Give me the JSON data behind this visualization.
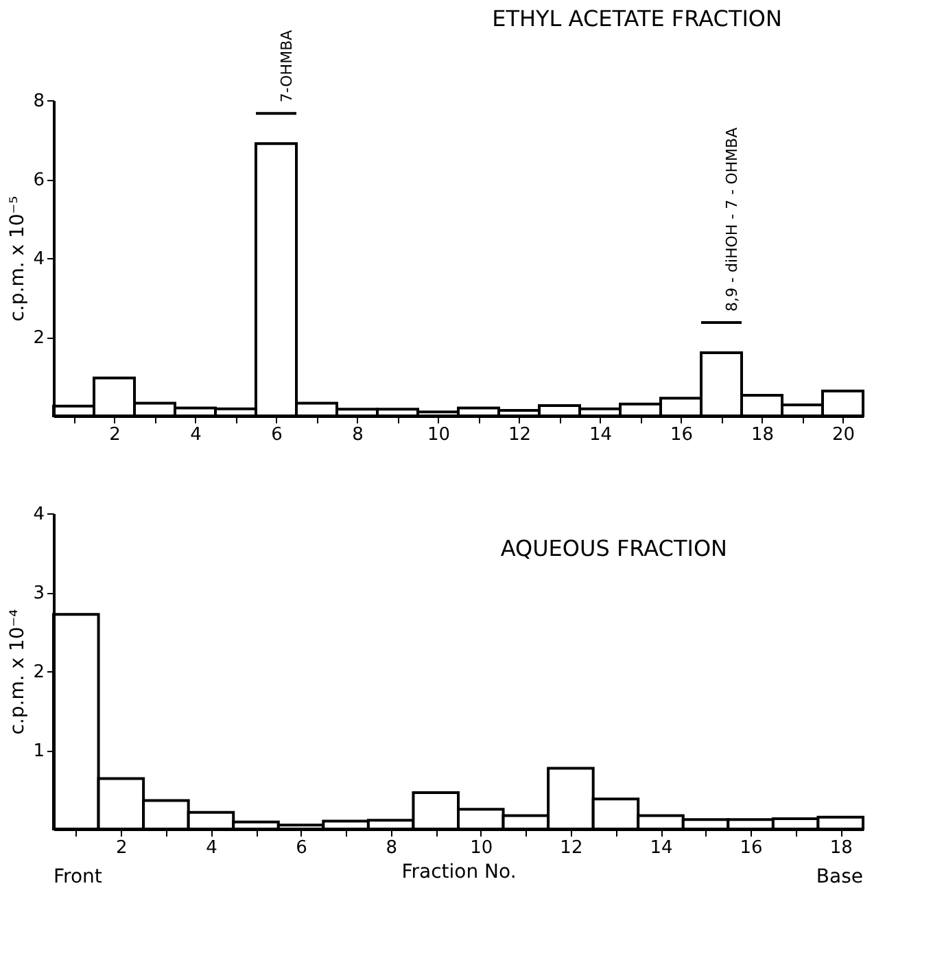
{
  "chart_data": [
    {
      "type": "histogram",
      "title": "ETHYL ACETATE FRACTION",
      "ylabel": "c.p.m. x 10⁻⁵",
      "color": "#000000",
      "bins": [
        0.5,
        1.5,
        2.5,
        3.5,
        4.5,
        5.5,
        6.5,
        7.5,
        8.5,
        9.5,
        10.5,
        11.5,
        12.5,
        13.5,
        14.5,
        15.5,
        16.5,
        17.5,
        18.5,
        19.5,
        20.5
      ],
      "values": [
        0.25,
        0.96,
        0.32,
        0.2,
        0.18,
        6.9,
        0.32,
        0.17,
        0.17,
        0.1,
        0.2,
        0.14,
        0.26,
        0.18,
        0.3,
        0.45,
        1.6,
        0.52,
        0.28,
        0.63
      ],
      "xlim": [
        0.5,
        20.5
      ],
      "ylim": [
        0,
        8
      ],
      "xticks": [
        {
          "value": 1,
          "label": null
        },
        2,
        {
          "value": 3,
          "label": null
        },
        4,
        {
          "value": 5,
          "label": null
        },
        6,
        {
          "value": 7,
          "label": null
        },
        8,
        {
          "value": 9,
          "label": null
        },
        10,
        {
          "value": 11,
          "label": null
        },
        12,
        {
          "value": 13,
          "label": null
        },
        14,
        {
          "value": 15,
          "label": null
        },
        16,
        {
          "value": 17,
          "label": null
        },
        18,
        {
          "value": 19,
          "label": null
        },
        20
      ],
      "yticks": [
        2,
        4,
        6,
        8
      ],
      "annotations": [
        {
          "text": "7-OHMBA",
          "x": 6,
          "y": 6.9
        },
        {
          "text": "8,9 - diHOH - 7 - OHMBA",
          "x": 17,
          "y": 1.6
        }
      ]
    },
    {
      "type": "histogram",
      "title": "AQUEOUS FRACTION",
      "ylabel": "c.p.m. x 10⁻⁴",
      "xlabel": "Fraction No.",
      "color": "#000000",
      "bins": [
        0.5,
        1.5,
        2.5,
        3.5,
        4.5,
        5.5,
        6.5,
        7.5,
        8.5,
        9.5,
        10.5,
        11.5,
        12.5,
        13.5,
        14.5,
        15.5,
        16.5,
        17.5,
        18.5
      ],
      "values": [
        2.72,
        0.64,
        0.36,
        0.21,
        0.09,
        0.05,
        0.1,
        0.11,
        0.46,
        0.25,
        0.17,
        0.77,
        0.38,
        0.17,
        0.12,
        0.12,
        0.13,
        0.15
      ],
      "xlim": [
        0.5,
        18.5
      ],
      "ylim": [
        0,
        4
      ],
      "xticks": [
        {
          "value": 1,
          "label": null
        },
        2,
        {
          "value": 3,
          "label": null
        },
        4,
        {
          "value": 5,
          "label": null
        },
        6,
        {
          "value": 7,
          "label": null
        },
        8,
        {
          "value": 9,
          "label": null
        },
        10,
        {
          "value": 11,
          "label": null
        },
        12,
        {
          "value": 13,
          "label": null
        },
        14,
        {
          "value": 15,
          "label": null
        },
        16,
        {
          "value": 17,
          "label": null
        },
        18
      ],
      "yticks": [
        1,
        2,
        3,
        4
      ],
      "annotations": [
        "Front",
        "Base"
      ]
    }
  ]
}
